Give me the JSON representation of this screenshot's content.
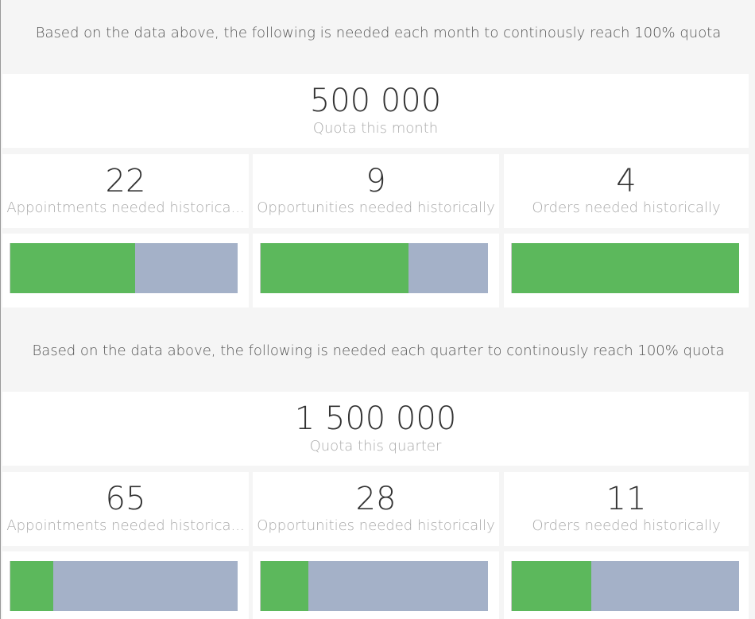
{
  "month": {
    "intro": "Based on the data above, the following is needed each month to continously reach 100% quota",
    "quota_value": "500 000",
    "quota_label": "Quota this month",
    "metrics": [
      {
        "value": "22",
        "label": "Appointments needed historica..."
      },
      {
        "value": "9",
        "label": "Opportunities needed historically"
      },
      {
        "value": "4",
        "label": "Orders needed historically"
      }
    ],
    "progress": [
      0.55,
      0.65,
      1.0
    ]
  },
  "quarter": {
    "intro": "Based on the data above, the following is needed each quarter to continously reach 100% quota",
    "quota_value": "1 500 000",
    "quota_label": "Quota this quarter",
    "metrics": [
      {
        "value": "65",
        "label": "Appointments needed historica..."
      },
      {
        "value": "28",
        "label": "Opportunities needed historically"
      },
      {
        "value": "11",
        "label": "Orders needed historically"
      }
    ],
    "progress": [
      0.19,
      0.21,
      0.35
    ]
  },
  "colors": {
    "bar_fill": "#5cb85c",
    "bar_track": "#a4b1c8"
  }
}
